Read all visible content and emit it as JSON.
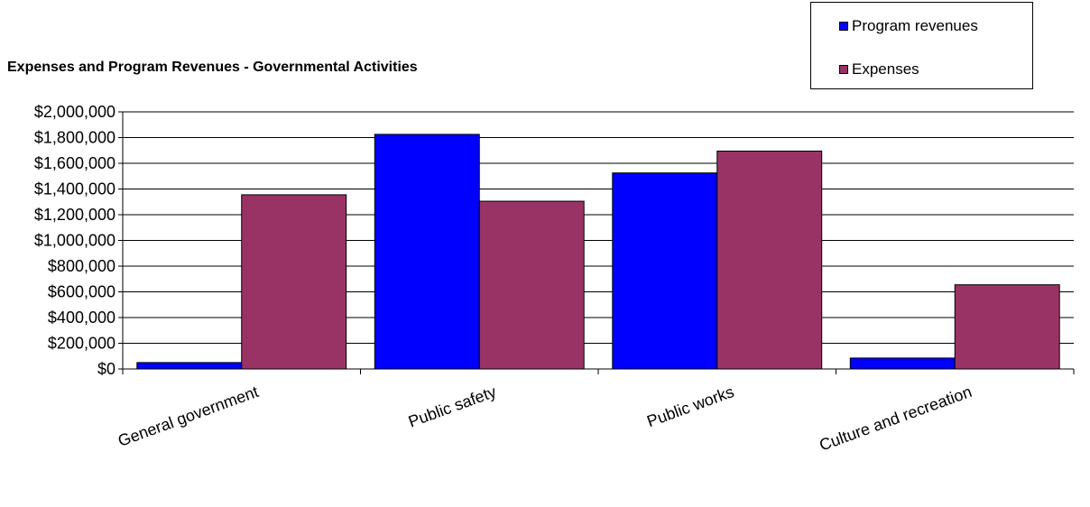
{
  "chart_data": {
    "type": "bar",
    "title": "Expenses and Program Revenues - Governmental Activities",
    "categories": [
      "General government",
      "Public safety",
      "Public works",
      "Culture and recreation"
    ],
    "series": [
      {
        "name": "Program revenues",
        "color": "#0000ff",
        "values": [
          50000,
          1825000,
          1525000,
          85000
        ]
      },
      {
        "name": "Expenses",
        "color": "#993366",
        "values": [
          1355000,
          1305000,
          1695000,
          655000
        ]
      }
    ],
    "ylim": [
      0,
      2000000
    ],
    "yticks": [
      0,
      200000,
      400000,
      600000,
      800000,
      1000000,
      1200000,
      1400000,
      1600000,
      1800000,
      2000000
    ],
    "ytick_labels": [
      "$0",
      "$200,000",
      "$400,000",
      "$600,000",
      "$800,000",
      "$1,000,000",
      "$1,200,000",
      "$1,400,000",
      "$1,600,000",
      "$1,800,000",
      "$2,000,000"
    ],
    "grid": true,
    "legend_position": "top-right",
    "xlabel": "",
    "ylabel": ""
  }
}
